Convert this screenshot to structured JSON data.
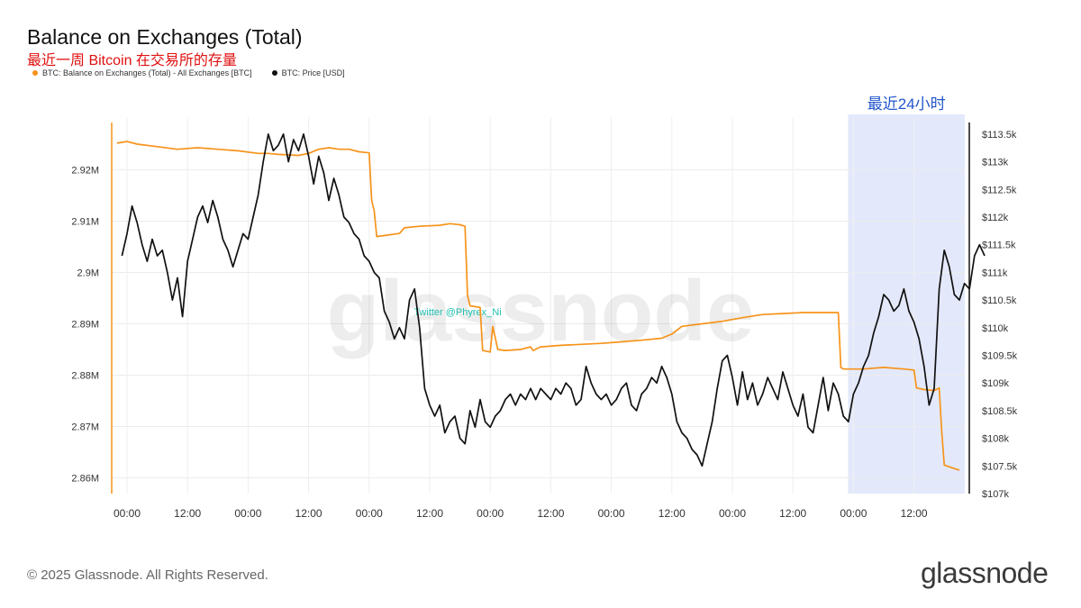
{
  "header": {
    "title": "Balance on Exchanges (Total)",
    "subtitle": "最近一周 Bitcoin 在交易所的存量"
  },
  "legend": [
    {
      "label": "BTC: Balance on Exchanges (Total) - All Exchanges [BTC]",
      "color": "#f7931a"
    },
    {
      "label": "BTC: Price [USD]",
      "color": "#111111"
    }
  ],
  "watermark": "glassnode",
  "twitter_tag": "Twitter @Phyrex_Ni",
  "highlight_label": "最近24小时",
  "footer": {
    "copyright": "© 2025 Glassnode. All Rights Reserved.",
    "logo": "glassnode"
  },
  "colors": {
    "balance": "#f7931a",
    "price": "#111111",
    "highlight": "#e3e9fb",
    "highlight_text": "#2255cc",
    "tag": "#20c0b0"
  },
  "chart_data": {
    "type": "line",
    "x_tick_labels": [
      "00:00",
      "12:00",
      "00:00",
      "12:00",
      "00:00",
      "12:00",
      "00:00",
      "12:00",
      "00:00",
      "12:00",
      "00:00",
      "12:00",
      "00:00",
      "12:00"
    ],
    "x_range_hours": [
      -3,
      165
    ],
    "highlight_range_hours": [
      144,
      168
    ],
    "left_axis": {
      "ylim": [
        2.86,
        2.93
      ],
      "ticks": [
        2.86,
        2.87,
        2.88,
        2.89,
        2.9,
        2.91,
        2.92
      ],
      "tick_labels": [
        "2.86M",
        "2.87M",
        "2.88M",
        "2.89M",
        "2.9M",
        "2.91M",
        "2.92M"
      ]
    },
    "right_axis": {
      "ylim": [
        107000,
        113800
      ],
      "ticks": [
        107000,
        107500,
        108000,
        108500,
        109000,
        109500,
        110000,
        110500,
        111000,
        111500,
        112000,
        112500,
        113000,
        113500
      ],
      "tick_labels": [
        "$107k",
        "$107.5k",
        "$108k",
        "$108.5k",
        "$109k",
        "$109.5k",
        "$110k",
        "$110.5k",
        "$111k",
        "$111.5k",
        "$112k",
        "$112.5k",
        "$113k",
        "$113.5k"
      ]
    },
    "series": [
      {
        "name": "BTC: Balance on Exchanges (Total) - All Exchanges [BTC]",
        "axis": "left",
        "points": [
          [
            -2,
            2.9252
          ],
          [
            0,
            2.9255
          ],
          [
            2,
            2.925
          ],
          [
            6,
            2.9245
          ],
          [
            10,
            2.924
          ],
          [
            14,
            2.9243
          ],
          [
            18,
            2.924
          ],
          [
            22,
            2.9237
          ],
          [
            26,
            2.9232
          ],
          [
            28,
            2.9232
          ],
          [
            30,
            2.923
          ],
          [
            34,
            2.9228
          ],
          [
            36,
            2.9232
          ],
          [
            38,
            2.924
          ],
          [
            40,
            2.9243
          ],
          [
            42,
            2.924
          ],
          [
            44,
            2.924
          ],
          [
            46,
            2.9235
          ],
          [
            48,
            2.9233
          ],
          [
            48.5,
            2.914
          ],
          [
            49,
            2.912
          ],
          [
            49.5,
            2.907
          ],
          [
            51,
            2.9072
          ],
          [
            54,
            2.9076
          ],
          [
            55,
            2.9087
          ],
          [
            58,
            2.909
          ],
          [
            62,
            2.9092
          ],
          [
            64,
            2.9095
          ],
          [
            66,
            2.9093
          ],
          [
            67,
            2.909
          ],
          [
            67.5,
            2.8955
          ],
          [
            68,
            2.8935
          ],
          [
            70,
            2.8932
          ],
          [
            70.5,
            2.8848
          ],
          [
            72,
            2.8845
          ],
          [
            72.5,
            2.8895
          ],
          [
            73.5,
            2.885
          ],
          [
            75,
            2.8848
          ],
          [
            78,
            2.885
          ],
          [
            80,
            2.8855
          ],
          [
            80.5,
            2.8848
          ],
          [
            82,
            2.8855
          ],
          [
            86,
            2.8858
          ],
          [
            90,
            2.886
          ],
          [
            94,
            2.8862
          ],
          [
            98,
            2.8865
          ],
          [
            102,
            2.8868
          ],
          [
            106,
            2.8872
          ],
          [
            108,
            2.888
          ],
          [
            110,
            2.8895
          ],
          [
            114,
            2.89
          ],
          [
            118,
            2.8905
          ],
          [
            122,
            2.8912
          ],
          [
            126,
            2.8918
          ],
          [
            130,
            2.892
          ],
          [
            134,
            2.8922
          ],
          [
            138,
            2.8922
          ],
          [
            140,
            2.8922
          ],
          [
            141,
            2.8922
          ],
          [
            141.5,
            2.8815
          ],
          [
            142,
            2.8812
          ],
          [
            146,
            2.8812
          ],
          [
            150,
            2.8815
          ],
          [
            154,
            2.8812
          ],
          [
            156,
            2.881
          ],
          [
            156.5,
            2.8775
          ],
          [
            158,
            2.8772
          ],
          [
            160,
            2.877
          ],
          [
            161,
            2.8775
          ],
          [
            161.5,
            2.869
          ],
          [
            162,
            2.8625
          ],
          [
            164,
            2.8618
          ],
          [
            165,
            2.8615
          ]
        ]
      },
      {
        "name": "BTC: Price [USD]",
        "axis": "right",
        "points": [
          [
            -1,
            111300
          ],
          [
            0,
            111700
          ],
          [
            1,
            112200
          ],
          [
            2,
            111900
          ],
          [
            3,
            111500
          ],
          [
            4,
            111200
          ],
          [
            5,
            111600
          ],
          [
            6,
            111300
          ],
          [
            7,
            111400
          ],
          [
            8,
            111000
          ],
          [
            9,
            110500
          ],
          [
            10,
            110900
          ],
          [
            11,
            110200
          ],
          [
            12,
            111200
          ],
          [
            13,
            111600
          ],
          [
            14,
            112000
          ],
          [
            15,
            112200
          ],
          [
            16,
            111900
          ],
          [
            17,
            112300
          ],
          [
            18,
            112000
          ],
          [
            19,
            111600
          ],
          [
            20,
            111400
          ],
          [
            21,
            111100
          ],
          [
            22,
            111400
          ],
          [
            23,
            111700
          ],
          [
            24,
            111600
          ],
          [
            25,
            112000
          ],
          [
            26,
            112400
          ],
          [
            27,
            113000
          ],
          [
            28,
            113500
          ],
          [
            29,
            113200
          ],
          [
            30,
            113300
          ],
          [
            31,
            113500
          ],
          [
            32,
            113000
          ],
          [
            33,
            113400
          ],
          [
            34,
            113200
          ],
          [
            35,
            113500
          ],
          [
            36,
            113100
          ],
          [
            37,
            112600
          ],
          [
            38,
            113100
          ],
          [
            39,
            112800
          ],
          [
            40,
            112300
          ],
          [
            41,
            112700
          ],
          [
            42,
            112400
          ],
          [
            43,
            112000
          ],
          [
            44,
            111900
          ],
          [
            45,
            111700
          ],
          [
            46,
            111600
          ],
          [
            47,
            111300
          ],
          [
            48,
            111200
          ],
          [
            49,
            111000
          ],
          [
            50,
            110900
          ],
          [
            51,
            110300
          ],
          [
            52,
            110100
          ],
          [
            53,
            109800
          ],
          [
            54,
            110000
          ],
          [
            55,
            109800
          ],
          [
            56,
            110500
          ],
          [
            57,
            110700
          ],
          [
            58,
            110000
          ],
          [
            59,
            108900
          ],
          [
            60,
            108600
          ],
          [
            61,
            108400
          ],
          [
            62,
            108600
          ],
          [
            63,
            108100
          ],
          [
            64,
            108300
          ],
          [
            65,
            108400
          ],
          [
            66,
            108000
          ],
          [
            67,
            107900
          ],
          [
            68,
            108500
          ],
          [
            69,
            108200
          ],
          [
            70,
            108700
          ],
          [
            71,
            108300
          ],
          [
            72,
            108200
          ],
          [
            73,
            108400
          ],
          [
            74,
            108500
          ],
          [
            75,
            108700
          ],
          [
            76,
            108800
          ],
          [
            77,
            108600
          ],
          [
            78,
            108800
          ],
          [
            79,
            108700
          ],
          [
            80,
            108900
          ],
          [
            81,
            108700
          ],
          [
            82,
            108900
          ],
          [
            83,
            108800
          ],
          [
            84,
            108700
          ],
          [
            85,
            108900
          ],
          [
            86,
            108800
          ],
          [
            87,
            109000
          ],
          [
            88,
            108900
          ],
          [
            89,
            108600
          ],
          [
            90,
            108700
          ],
          [
            91,
            109300
          ],
          [
            92,
            109000
          ],
          [
            93,
            108800
          ],
          [
            94,
            108700
          ],
          [
            95,
            108800
          ],
          [
            96,
            108600
          ],
          [
            97,
            108700
          ],
          [
            98,
            108900
          ],
          [
            99,
            109000
          ],
          [
            100,
            108600
          ],
          [
            101,
            108500
          ],
          [
            102,
            108800
          ],
          [
            103,
            108900
          ],
          [
            104,
            109100
          ],
          [
            105,
            109000
          ],
          [
            106,
            109300
          ],
          [
            107,
            109100
          ],
          [
            108,
            108800
          ],
          [
            109,
            108300
          ],
          [
            110,
            108100
          ],
          [
            111,
            108000
          ],
          [
            112,
            107800
          ],
          [
            113,
            107700
          ],
          [
            114,
            107500
          ],
          [
            115,
            107900
          ],
          [
            116,
            108300
          ],
          [
            117,
            108900
          ],
          [
            118,
            109400
          ],
          [
            119,
            109500
          ],
          [
            120,
            109100
          ],
          [
            121,
            108600
          ],
          [
            122,
            109200
          ],
          [
            123,
            108700
          ],
          [
            124,
            109000
          ],
          [
            125,
            108600
          ],
          [
            126,
            108800
          ],
          [
            127,
            109100
          ],
          [
            128,
            108900
          ],
          [
            129,
            108700
          ],
          [
            130,
            109200
          ],
          [
            131,
            108900
          ],
          [
            132,
            108600
          ],
          [
            133,
            108400
          ],
          [
            134,
            108800
          ],
          [
            135,
            108200
          ],
          [
            136,
            108100
          ],
          [
            137,
            108600
          ],
          [
            138,
            109100
          ],
          [
            139,
            108500
          ],
          [
            140,
            109000
          ],
          [
            141,
            108800
          ],
          [
            142,
            108400
          ],
          [
            143,
            108300
          ],
          [
            144,
            108800
          ],
          [
            145,
            109000
          ],
          [
            146,
            109300
          ],
          [
            147,
            109500
          ],
          [
            148,
            109900
          ],
          [
            149,
            110200
          ],
          [
            150,
            110600
          ],
          [
            151,
            110500
          ],
          [
            152,
            110300
          ],
          [
            153,
            110400
          ],
          [
            154,
            110700
          ],
          [
            155,
            110300
          ],
          [
            156,
            110100
          ],
          [
            157,
            109800
          ],
          [
            158,
            109300
          ],
          [
            159,
            108600
          ],
          [
            160,
            108900
          ],
          [
            161,
            110700
          ],
          [
            162,
            111400
          ],
          [
            163,
            111100
          ],
          [
            164,
            110600
          ],
          [
            165,
            110500
          ],
          [
            166,
            110800
          ],
          [
            167,
            110700
          ],
          [
            168,
            111300
          ],
          [
            169,
            111500
          ],
          [
            170,
            111300
          ]
        ]
      }
    ]
  }
}
